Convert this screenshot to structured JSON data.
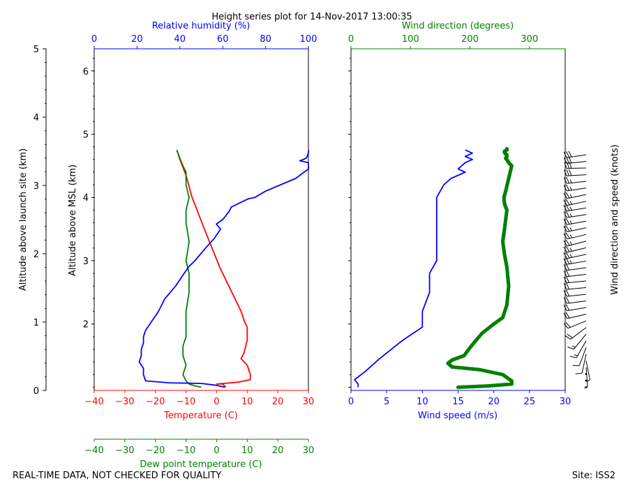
{
  "chart_data": {
    "type": "line",
    "title": "Height series plot for 14-Nov-2017 13:00:35",
    "footer_left": "REAL-TIME DATA, NOT CHECKED FOR QUALITY",
    "footer_right": "Site: ISS2",
    "left_panel": {
      "ylabel_outer": "Altitude above launch site (km)",
      "ylim_outer": [
        0,
        5
      ],
      "yticks_outer": [
        "0",
        "1",
        "2",
        "3",
        "4",
        "5"
      ],
      "ylabel_inner": "Altitude above MSL (km)",
      "ylim_inner": [
        0.95,
        6.35
      ],
      "yticks_inner": [
        "2",
        "3",
        "4",
        "5",
        "6"
      ],
      "xlabel_temperature": "Temperature (C)",
      "xlim_temperature": [
        -40,
        30
      ],
      "xticks_temperature": [
        "−40",
        "−30",
        "−20",
        "−10",
        "0",
        "10",
        "20",
        "30"
      ],
      "xlabel_dewpoint": "Dew point temperature (C)",
      "xlim_dewpoint": [
        -40,
        30
      ],
      "xticks_dewpoint": [
        "−40",
        "−30",
        "−20",
        "−10",
        "0",
        "10",
        "20",
        "30"
      ],
      "xlabel_rh": "Relative humidity (%)",
      "xlim_rh": [
        0,
        100
      ],
      "xticks_rh": [
        "0",
        "20",
        "40",
        "60",
        "80",
        "100"
      ],
      "series": [
        {
          "name": "Temperature",
          "color": "#ff0000",
          "x_axis": "temperature",
          "x": [
            3,
            2,
            0,
            7,
            11,
            11,
            10,
            8,
            9,
            10,
            10,
            9,
            8,
            1,
            -4,
            -8,
            -10,
            -12,
            -13
          ],
          "y": [
            1.0,
            1.05,
            1.05,
            1.08,
            1.12,
            1.2,
            1.35,
            1.45,
            1.55,
            1.75,
            1.95,
            2.05,
            2.2,
            2.9,
            3.5,
            4.0,
            4.35,
            4.6,
            4.75
          ]
        },
        {
          "name": "Dew point",
          "color": "#008000",
          "x_axis": "dewpoint",
          "x": [
            -5,
            -7,
            -9,
            -10,
            -11,
            -10,
            -11,
            -11,
            -10,
            -10,
            -10,
            -9,
            -9,
            -10,
            -9,
            -10,
            -10,
            -9,
            -10,
            -10,
            -11,
            -12,
            -13
          ],
          "y": [
            1.0,
            1.02,
            1.05,
            1.1,
            1.2,
            1.35,
            1.5,
            1.65,
            1.8,
            2.0,
            2.2,
            2.5,
            2.8,
            3.0,
            3.3,
            3.6,
            3.8,
            4.0,
            4.2,
            4.4,
            4.5,
            4.62,
            4.75
          ]
        },
        {
          "name": "Relative humidity",
          "color": "#0000ff",
          "x_axis": "rh",
          "x": [
            61,
            57,
            50,
            35,
            24,
            23,
            23,
            21,
            22,
            22,
            23,
            23,
            24,
            26,
            30,
            33,
            38,
            42,
            44,
            47,
            52,
            56,
            59,
            57,
            60,
            63,
            64,
            72,
            75,
            80,
            94,
            100,
            100,
            96,
            99,
            100,
            100
          ],
          "y": [
            1.0,
            1.03,
            1.06,
            1.07,
            1.1,
            1.2,
            1.3,
            1.4,
            1.5,
            1.6,
            1.7,
            1.8,
            1.9,
            2.0,
            2.2,
            2.4,
            2.6,
            2.8,
            2.9,
            3.0,
            3.2,
            3.35,
            3.5,
            3.58,
            3.65,
            3.78,
            3.85,
            3.98,
            4.0,
            4.1,
            4.3,
            4.45,
            4.55,
            4.58,
            4.62,
            4.7,
            4.75
          ]
        }
      ]
    },
    "right_panel": {
      "xlabel_speed": "Wind speed (m/s)",
      "xlim_speed": [
        0,
        30
      ],
      "xticks_speed": [
        "0",
        "5",
        "10",
        "15",
        "20",
        "25",
        "30"
      ],
      "xlabel_direction": "Wind direction (degrees)",
      "xlim_direction": [
        0,
        360
      ],
      "xticks_direction": [
        "0",
        "100",
        "200",
        "300"
      ],
      "barb_label": "Wind direction and speed (knots)",
      "series": [
        {
          "name": "Wind speed",
          "color": "#0000ff",
          "x_axis": "speed",
          "x": [
            1,
            1,
            0.5,
            2,
            4,
            7,
            8,
            10,
            10,
            11,
            11,
            12,
            12,
            12,
            12,
            12,
            12,
            12,
            12,
            12,
            12.5,
            13,
            14,
            15,
            16,
            15,
            16,
            17,
            16,
            17,
            16
          ],
          "y": [
            1.0,
            1.05,
            1.12,
            1.25,
            1.45,
            1.72,
            1.8,
            1.95,
            2.2,
            2.5,
            2.8,
            3.0,
            3.2,
            3.4,
            3.5,
            3.7,
            3.8,
            3.9,
            3.95,
            4.0,
            4.1,
            4.2,
            4.3,
            4.35,
            4.4,
            4.45,
            4.55,
            4.6,
            4.65,
            4.7,
            4.75
          ]
        },
        {
          "name": "Wind direction",
          "color": "#008000",
          "x_axis": "direction",
          "x": [
            180,
            230,
            270,
            270,
            255,
            215,
            170,
            163,
            170,
            190,
            202,
            220,
            240,
            255,
            262,
            265,
            262,
            258,
            255,
            258,
            262,
            258,
            257,
            260,
            265,
            270,
            265,
            262,
            260,
            262,
            262,
            260,
            258,
            258,
            262,
            262
          ],
          "y": [
            1.0,
            1.02,
            1.05,
            1.1,
            1.2,
            1.28,
            1.32,
            1.38,
            1.43,
            1.5,
            1.65,
            1.85,
            2.0,
            2.1,
            2.3,
            2.6,
            2.9,
            3.1,
            3.3,
            3.5,
            3.8,
            3.9,
            4.0,
            4.1,
            4.3,
            4.5,
            4.55,
            4.6,
            4.62,
            4.65,
            4.67,
            4.69,
            4.71,
            4.73,
            4.75,
            4.77
          ]
        }
      ]
    }
  }
}
